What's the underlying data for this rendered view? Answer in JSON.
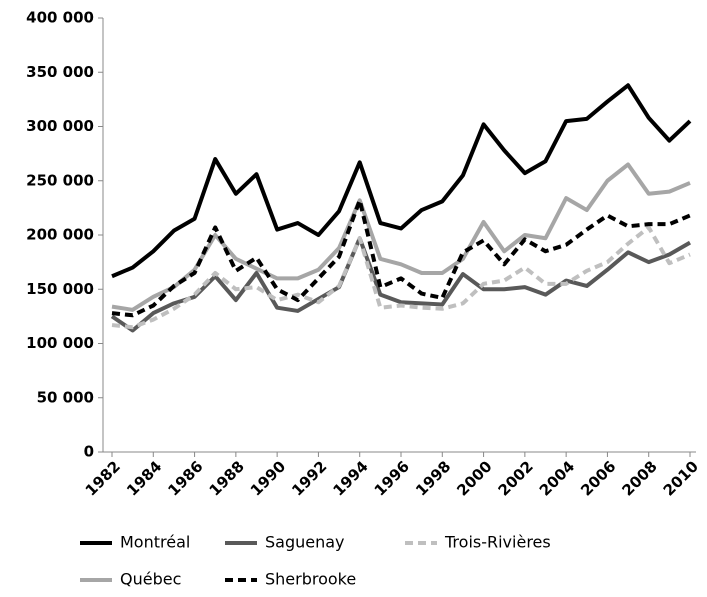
{
  "chart_data": {
    "type": "line",
    "x": [
      1982,
      1983,
      1984,
      1985,
      1986,
      1987,
      1988,
      1989,
      1990,
      1991,
      1992,
      1993,
      1994,
      1995,
      1996,
      1997,
      1998,
      1999,
      2000,
      2001,
      2002,
      2003,
      2004,
      2005,
      2006,
      2007,
      2008,
      2009,
      2010
    ],
    "xlim": [
      1982,
      2010
    ],
    "xticks": [
      1982,
      1984,
      1986,
      1988,
      1990,
      1992,
      1994,
      1996,
      1998,
      2000,
      2002,
      2004,
      2006,
      2008,
      2010
    ],
    "ylim": [
      0,
      400000
    ],
    "yticks": [
      0,
      {
        "value": 50000,
        "label": "50 000"
      },
      {
        "value": 100000,
        "label": "100 000"
      },
      {
        "value": 150000,
        "label": "150 000"
      },
      {
        "value": 200000,
        "label": "200 000"
      },
      {
        "value": 250000,
        "label": "250 000"
      },
      {
        "value": 300000,
        "label": "300 000"
      },
      {
        "value": 350000,
        "label": "350 000"
      },
      {
        "value": 400000,
        "label": "400 000"
      }
    ],
    "grid": false,
    "legend": "bottom",
    "series": [
      {
        "name": "Montréal",
        "color": "#000000",
        "dashed": false,
        "values": [
          162000,
          170000,
          185000,
          204000,
          215000,
          270000,
          238000,
          256000,
          205000,
          211000,
          200000,
          222000,
          267000,
          211000,
          206000,
          223000,
          231000,
          255000,
          302000,
          278000,
          257000,
          268000,
          305000,
          307000,
          323000,
          338000,
          308000,
          287000,
          305000
        ]
      },
      {
        "name": "Saguenay",
        "color": "#595959",
        "dashed": false,
        "values": [
          125000,
          112000,
          128000,
          137000,
          143000,
          162000,
          140000,
          165000,
          133000,
          130000,
          141000,
          152000,
          197000,
          145000,
          138000,
          137000,
          136000,
          164000,
          150000,
          150000,
          152000,
          145000,
          158000,
          153000,
          168000,
          184000,
          175000,
          182000,
          193000
        ]
      },
      {
        "name": "Trois-Rivières",
        "color": "#bfbfbf",
        "dashed": true,
        "values": [
          117000,
          115000,
          122000,
          132000,
          145000,
          165000,
          150000,
          152000,
          140000,
          145000,
          138000,
          153000,
          197000,
          133000,
          135000,
          133000,
          132000,
          137000,
          155000,
          158000,
          170000,
          155000,
          155000,
          167000,
          175000,
          192000,
          207000,
          174000,
          182000
        ]
      },
      {
        "name": "Québec",
        "color": "#a6a6a6",
        "dashed": false,
        "values": [
          134000,
          131000,
          143000,
          152000,
          168000,
          200000,
          178000,
          169000,
          160000,
          160000,
          168000,
          188000,
          232000,
          178000,
          173000,
          165000,
          165000,
          178000,
          212000,
          185000,
          200000,
          197000,
          234000,
          223000,
          250000,
          265000,
          238000,
          240000,
          248000
        ]
      },
      {
        "name": "Sherbrooke",
        "color": "#000000",
        "dashed": true,
        "values": [
          128000,
          126000,
          135000,
          153000,
          165000,
          207000,
          167000,
          179000,
          150000,
          140000,
          160000,
          180000,
          232000,
          152000,
          160000,
          146000,
          142000,
          184000,
          195000,
          173000,
          196000,
          185000,
          191000,
          205000,
          218000,
          208000,
          210000,
          210000,
          218000
        ]
      }
    ]
  }
}
